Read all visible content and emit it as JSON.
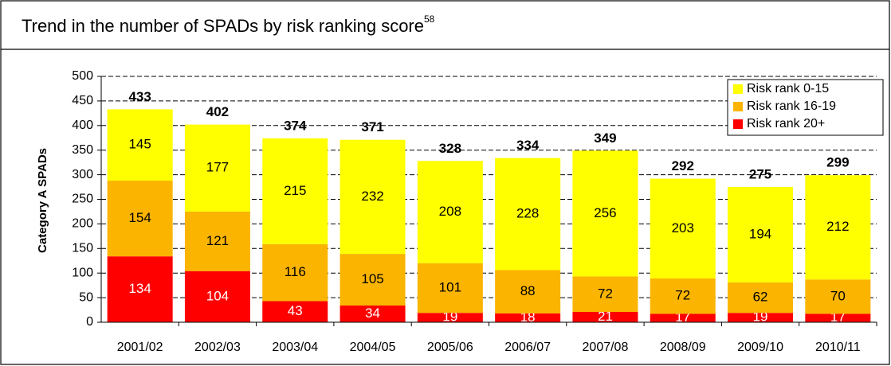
{
  "chart_data": {
    "type": "stacked_bar",
    "title": "Trend in the number of SPADs by risk ranking score",
    "title_superscript": "58",
    "ylabel": "Category A SPADs",
    "categories": [
      "2001/02",
      "2002/03",
      "2003/04",
      "2004/05",
      "2005/06",
      "2006/07",
      "2007/08",
      "2008/09",
      "2009/10",
      "2010/11"
    ],
    "series": [
      {
        "name": "Risk rank 20+",
        "color": "#ff0000",
        "label_color": "#ffffff",
        "values": [
          134,
          104,
          43,
          34,
          19,
          18,
          21,
          17,
          19,
          17
        ]
      },
      {
        "name": "Risk rank 16-19",
        "color": "#fbb400",
        "label_color": "#000000",
        "values": [
          154,
          121,
          116,
          105,
          101,
          88,
          72,
          72,
          62,
          70
        ]
      },
      {
        "name": "Risk rank 0-15",
        "color": "#ffff00",
        "label_color": "#000000",
        "values": [
          145,
          177,
          215,
          232,
          208,
          228,
          256,
          203,
          194,
          212
        ]
      }
    ],
    "totals": [
      433,
      402,
      374,
      371,
      328,
      334,
      349,
      292,
      275,
      299
    ],
    "ylim": [
      0,
      500
    ],
    "yticks": [
      0,
      50,
      100,
      150,
      200,
      250,
      300,
      350,
      400,
      450,
      500
    ],
    "grid": true,
    "legend": "top-right"
  }
}
